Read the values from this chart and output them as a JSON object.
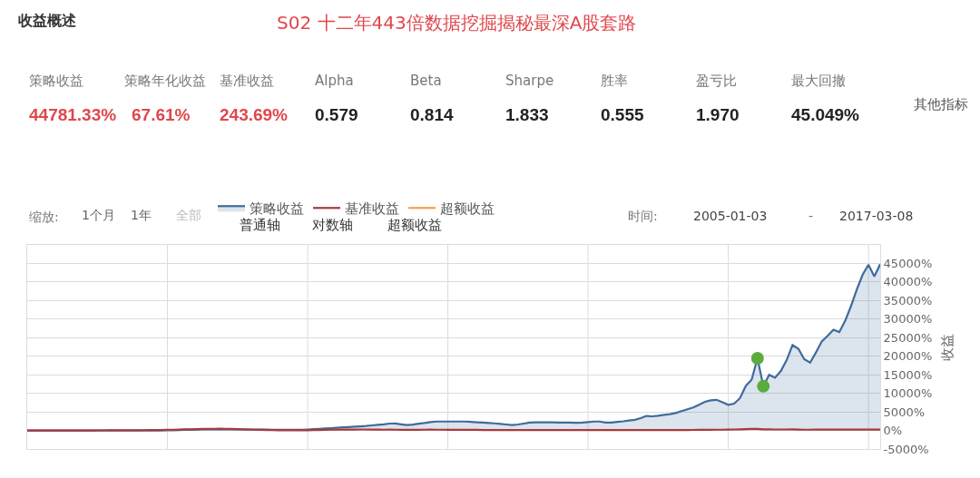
{
  "chart_data": {
    "type": "line",
    "title": "S02 十二年443倍数据挖掘揭秘最深A股套路",
    "annotations": [
      "收益概述",
      "策略收益",
      "策略年化收益",
      "基准收益",
      "Alpha",
      "Beta",
      "Sharpe",
      "胜率",
      "盈亏比",
      "最大回撤",
      "44781.33%",
      "67.61%",
      "243.69%",
      "0.579",
      "0.814",
      "1.833",
      "0.555",
      "1.970",
      "45.049%",
      "其他指标",
      "缩放:",
      "1个月",
      "1年",
      "全部",
      "普通轴",
      "对数轴",
      "超额收益",
      "时间:",
      "2005-01-03",
      "-",
      "2017-03-08"
    ],
    "ylabel": "收益",
    "categories": [
      null,
      null,
      null,
      null,
      null,
      null,
      null,
      null,
      null,
      null,
      null,
      null,
      null,
      null,
      null,
      null,
      null,
      null,
      null,
      null,
      null,
      null,
      null,
      null,
      null,
      null,
      null,
      null,
      null,
      null,
      null,
      null,
      null,
      null,
      null,
      null,
      null,
      null,
      null,
      null,
      null,
      null,
      null,
      null,
      null,
      null,
      null,
      null,
      null,
      null,
      null,
      null,
      null,
      null,
      null,
      null,
      null,
      null,
      null,
      null,
      null,
      null,
      null,
      null,
      null,
      null,
      null,
      null,
      null,
      null,
      null,
      null,
      null,
      null,
      null,
      null,
      null,
      null,
      null,
      null,
      null,
      null,
      null,
      null,
      null,
      null,
      null,
      null,
      null,
      null,
      null,
      null,
      null,
      null,
      null,
      null,
      null,
      null,
      null,
      null,
      null,
      null,
      null,
      null,
      null,
      null,
      null,
      null,
      null,
      null,
      null,
      null,
      null,
      null,
      null,
      null,
      null,
      null,
      null,
      null,
      null,
      null,
      null,
      null,
      null,
      null,
      null,
      null,
      null,
      null,
      null,
      null,
      null,
      null,
      null,
      null,
      null,
      null,
      null,
      null,
      null,
      null,
      null,
      null,
      null,
      null,
      null
    ],
    "series": [
      {
        "name": "策略收益",
        "type": "area",
        "color": "#3f6b9c",
        "values": [
          0,
          0,
          0,
          0,
          0,
          0,
          0,
          0,
          0,
          0,
          0,
          0,
          0,
          0,
          0,
          0,
          0,
          0,
          0,
          0,
          0,
          0,
          0,
          0,
          30,
          60,
          100,
          140,
          180,
          220,
          250,
          290,
          300,
          290,
          280,
          270,
          260,
          250,
          240,
          230,
          220,
          210,
          200,
          190,
          180,
          170,
          160,
          155,
          230,
          330,
          430,
          530,
          620,
          720,
          840,
          910,
          1000,
          1100,
          1190,
          1350,
          1500,
          1650,
          1850,
          1880,
          1650,
          1450,
          1550,
          1800,
          2000,
          2250,
          2400,
          2400,
          2400,
          2400,
          2400,
          2400,
          2300,
          2200,
          2100,
          2000,
          1900,
          1750,
          1600,
          1450,
          1600,
          1850,
          2100,
          2200,
          2200,
          2180,
          2160,
          2140,
          2120,
          2100,
          2050,
          2100,
          2250,
          2400,
          2400,
          2100,
          2100,
          2300,
          2450,
          2650,
          2850,
          3300,
          3900,
          3800,
          3950,
          4200,
          4400,
          4700,
          5200,
          5700,
          6200,
          6900,
          7700,
          8100,
          8250,
          7600,
          6900,
          7200,
          8700,
          12000,
          13700,
          19450,
          11900,
          15000,
          14200,
          16000,
          19000,
          23000,
          22000,
          19200,
          18300,
          21000,
          24000,
          25500,
          27150,
          26500,
          29500,
          33500,
          38000,
          42000,
          44650,
          41500,
          44781.33
        ]
      },
      {
        "name": "基准收益",
        "color": "#a83a3a",
        "values": [
          0,
          0,
          0,
          0,
          0,
          0,
          0,
          0,
          0,
          0,
          0,
          0,
          10,
          10,
          20,
          20,
          30,
          40,
          50,
          60,
          70,
          90,
          110,
          130,
          160,
          200,
          240,
          280,
          320,
          360,
          390,
          420,
          440,
          450,
          440,
          400,
          350,
          300,
          250,
          200,
          160,
          120,
          90,
          60,
          40,
          30,
          30,
          30,
          50,
          80,
          120,
          160,
          200,
          240,
          230,
          220,
          240,
          250,
          250,
          240,
          220,
          200,
          210,
          200,
          170,
          150,
          160,
          180,
          200,
          210,
          200,
          190,
          180,
          180,
          170,
          160,
          150,
          140,
          120,
          110,
          110,
          100,
          100,
          90,
          100,
          110,
          110,
          100,
          100,
          90,
          90,
          90,
          90,
          90,
          80,
          80,
          90,
          90,
          90,
          80,
          80,
          80,
          90,
          90,
          90,
          90,
          100,
          100,
          100,
          100,
          100,
          110,
          110,
          120,
          130,
          140,
          150,
          170,
          190,
          200,
          220,
          250,
          300,
          350,
          420,
          400,
          300,
          280,
          250,
          250,
          260,
          270,
          230,
          190,
          200,
          210,
          210,
          210,
          220,
          220,
          220,
          220,
          230,
          230,
          240,
          240,
          243.69
        ]
      },
      {
        "name": "超额收益",
        "color": "#f5a04a",
        "values": [
          null,
          null,
          null,
          null,
          null,
          null,
          null,
          null,
          null,
          null,
          null,
          null,
          null,
          null,
          null,
          null,
          null,
          null,
          null,
          null,
          null,
          null,
          null,
          null,
          null,
          null,
          null,
          null,
          null,
          null,
          null,
          null,
          null,
          null,
          null,
          null,
          null,
          null,
          null,
          null,
          null,
          null,
          null,
          null,
          null,
          null,
          null,
          null,
          null,
          null,
          null,
          null,
          null,
          null,
          null,
          null,
          null,
          null,
          null,
          null,
          null,
          null,
          null,
          null,
          null,
          null,
          null,
          null,
          null,
          null,
          null,
          null,
          null,
          null,
          null,
          null,
          null,
          null,
          null,
          null,
          null,
          null,
          null,
          null,
          null,
          null,
          null,
          null,
          null,
          null,
          null,
          null,
          null,
          null,
          null,
          null,
          null,
          null,
          null,
          null,
          null,
          null,
          null,
          null,
          null,
          null,
          null,
          null,
          null,
          null,
          null,
          null,
          null,
          null,
          null,
          null,
          null,
          null,
          null,
          null,
          null,
          null,
          null,
          null,
          null,
          null,
          null,
          null,
          null,
          null,
          null,
          null,
          null,
          null,
          null,
          null,
          null,
          null,
          null,
          null,
          null,
          null,
          null,
          null,
          null,
          null,
          null
        ]
      },
      {
        "type": "scatter",
        "marker": "circle",
        "color": "#5aac3c",
        "values": [
          null,
          null,
          null,
          null,
          null,
          null,
          null,
          null,
          null,
          null,
          null,
          null,
          null,
          null,
          null,
          null,
          null,
          null,
          null,
          null,
          null,
          null,
          null,
          null,
          null,
          null,
          null,
          null,
          null,
          null,
          null,
          null,
          null,
          null,
          null,
          null,
          null,
          null,
          null,
          null,
          null,
          null,
          null,
          null,
          null,
          null,
          null,
          null,
          null,
          null,
          null,
          null,
          null,
          null,
          null,
          null,
          null,
          null,
          null,
          null,
          null,
          null,
          null,
          null,
          null,
          null,
          null,
          null,
          null,
          null,
          null,
          null,
          null,
          null,
          null,
          null,
          null,
          null,
          null,
          null,
          null,
          null,
          null,
          null,
          null,
          null,
          null,
          null,
          null,
          null,
          null,
          null,
          null,
          null,
          null,
          null,
          null,
          null,
          null,
          null,
          null,
          null,
          null,
          null,
          null,
          null,
          null,
          null,
          null,
          null,
          null,
          null,
          null,
          null,
          null,
          null,
          null,
          null,
          null,
          null,
          null,
          null,
          null,
          null,
          null,
          19450,
          11900,
          null,
          null,
          null,
          null,
          null,
          null,
          null,
          null,
          null,
          null,
          null,
          null,
          null,
          null,
          null,
          null,
          null,
          null,
          null,
          null
        ]
      }
    ],
    "ylim": [
      -5000,
      50000
    ],
    "yticks": [
      {
        "value": -5000,
        "label": "-5000%"
      },
      {
        "value": 0,
        "label": "0%"
      },
      {
        "value": 5000,
        "label": "5000%"
      },
      {
        "value": 10000,
        "label": "10000%"
      },
      {
        "value": 15000,
        "label": "15000%"
      },
      {
        "value": 20000,
        "label": "20000%"
      },
      {
        "value": 25000,
        "label": "25000%"
      },
      {
        "value": 30000,
        "label": "30000%"
      },
      {
        "value": 35000,
        "label": "35000%"
      },
      {
        "value": 40000,
        "label": "40000%"
      },
      {
        "value": 45000,
        "label": "45000%"
      }
    ],
    "tick_labels": "y",
    "grid": true,
    "legend": "top left"
  }
}
